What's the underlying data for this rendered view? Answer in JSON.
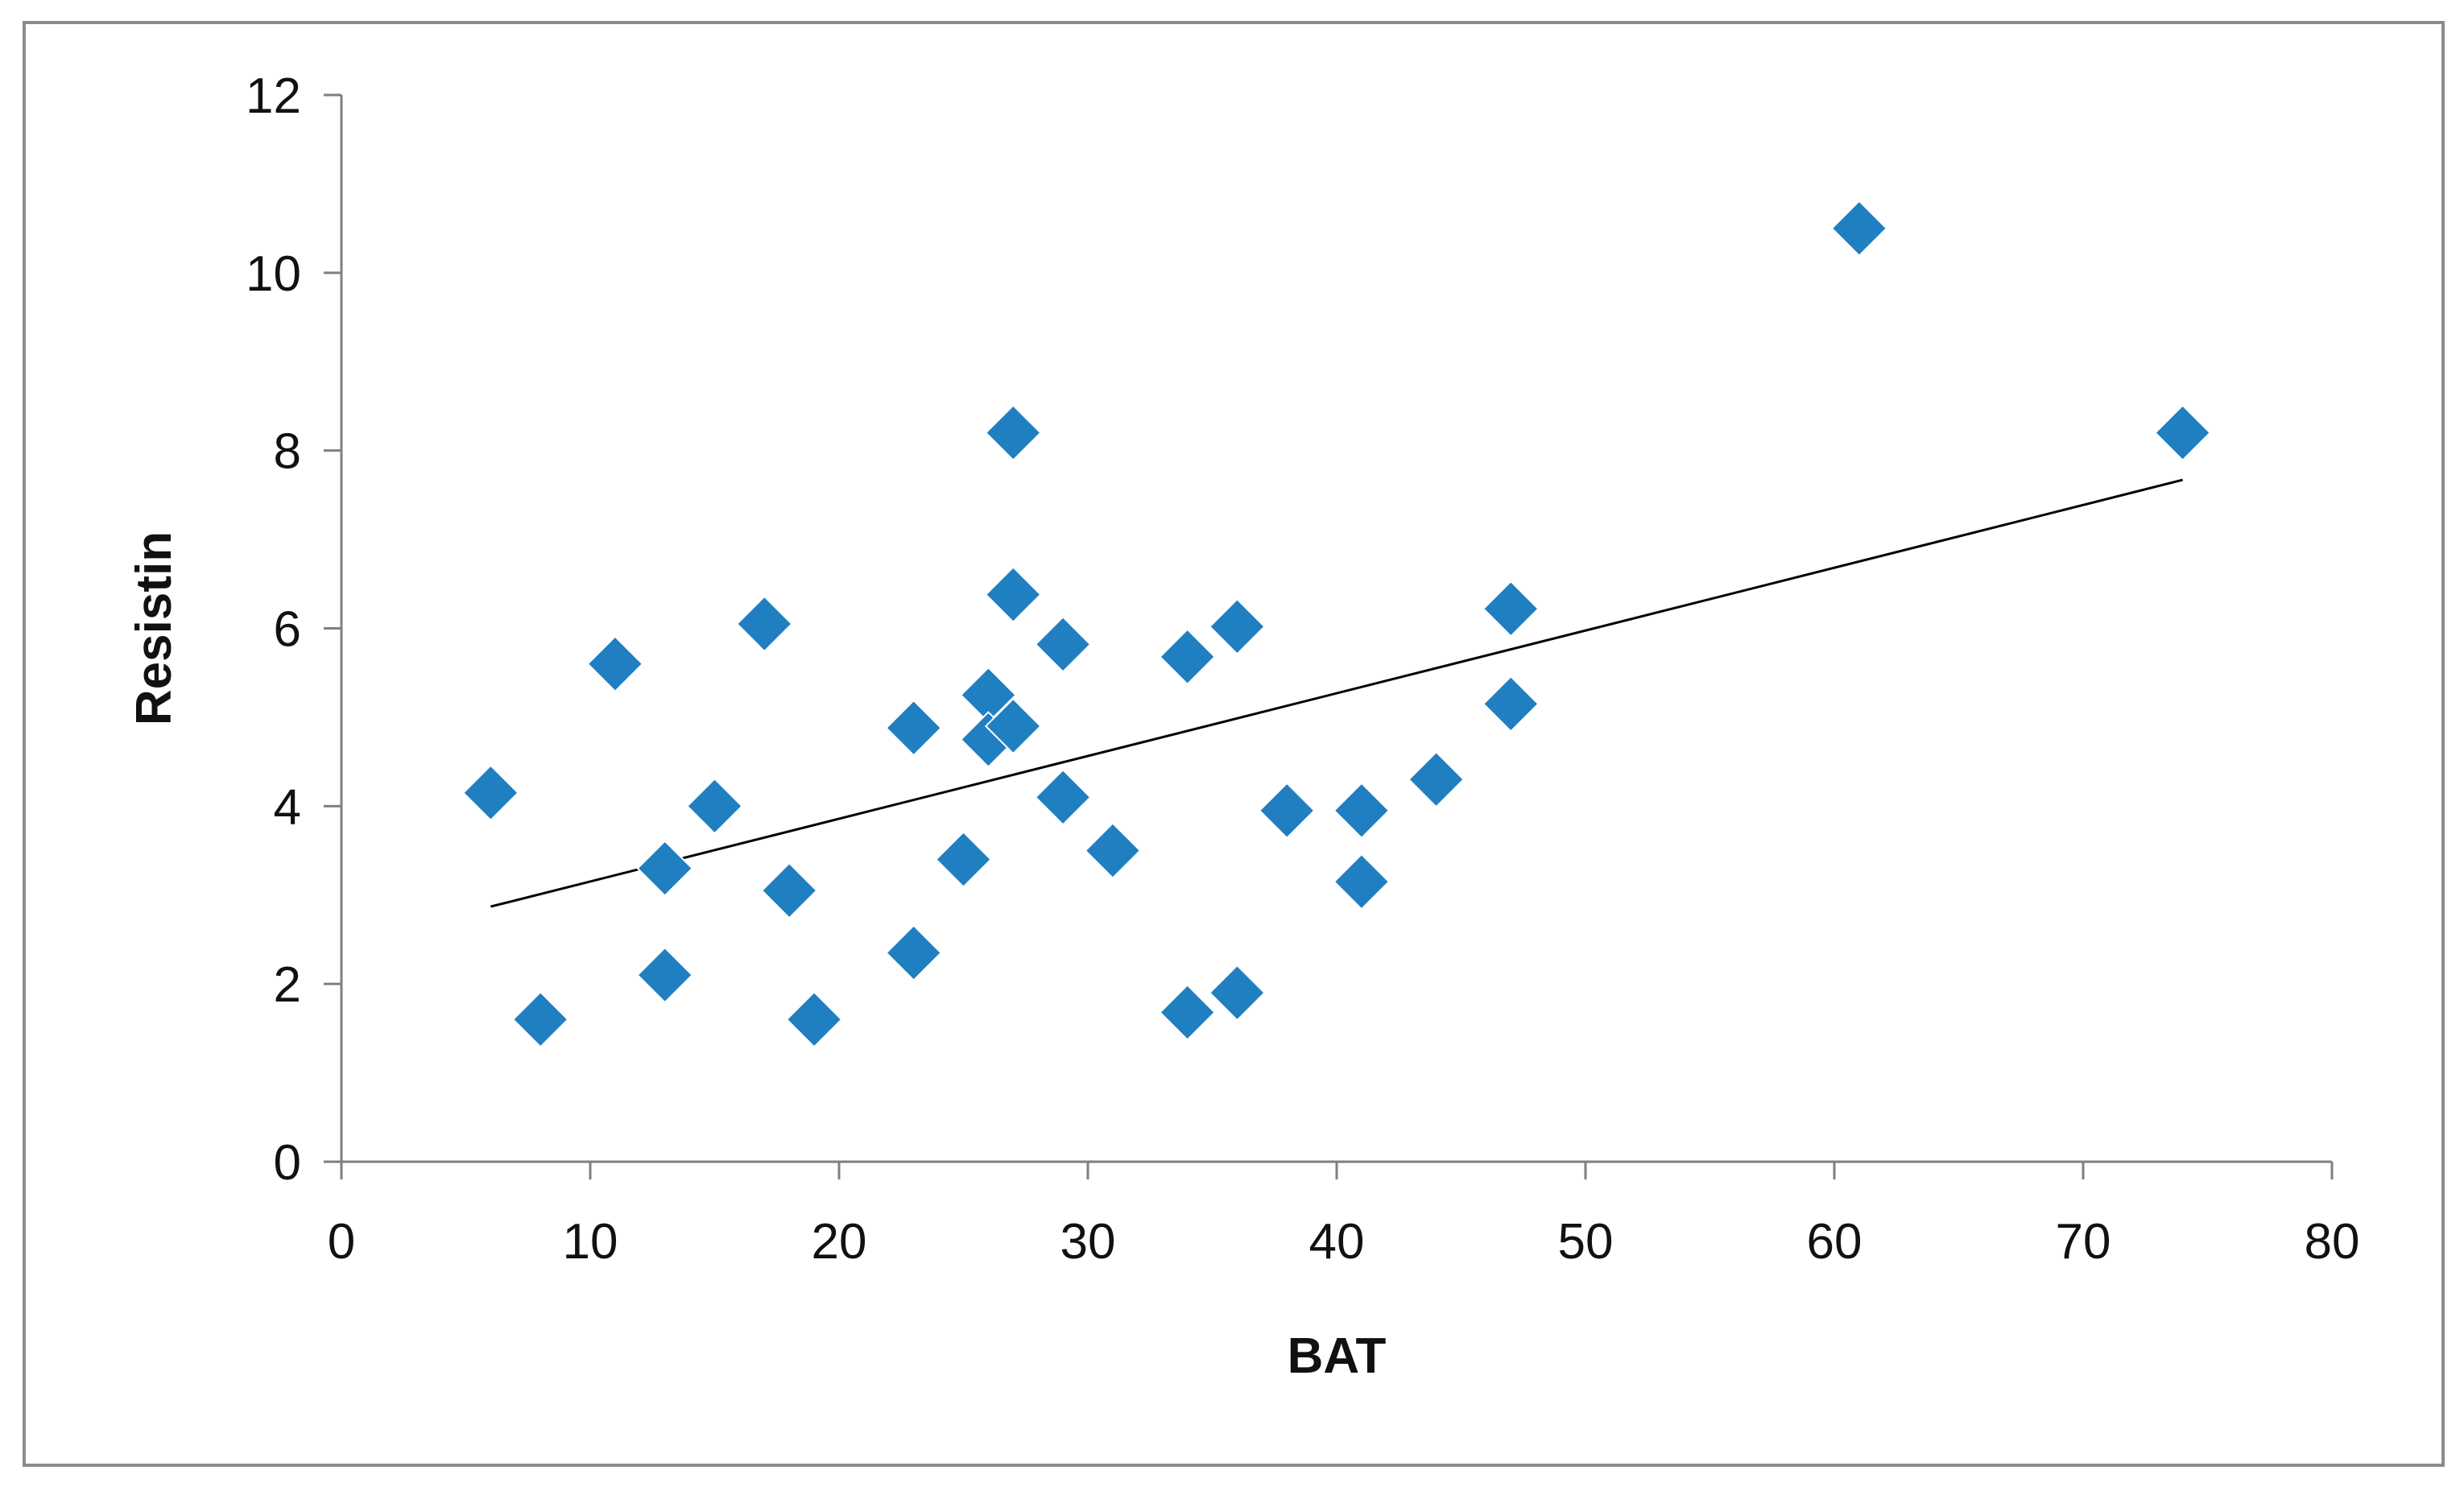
{
  "chart_data": {
    "type": "scatter",
    "xlabel": "BAT",
    "ylabel": "Resistin",
    "xlim": [
      0,
      80
    ],
    "ylim": [
      0,
      12
    ],
    "x_ticks": [
      0,
      10,
      20,
      30,
      40,
      50,
      60,
      70,
      80
    ],
    "y_ticks": [
      0,
      2,
      4,
      6,
      8,
      10,
      12
    ],
    "grid": false,
    "legend": "none",
    "marker": "diamond",
    "marker_color": "#1f7fc1",
    "series": [
      {
        "points": [
          [
            6,
            4.15
          ],
          [
            8,
            1.6
          ],
          [
            11,
            5.6
          ],
          [
            13,
            3.3
          ],
          [
            13,
            2.1
          ],
          [
            15,
            4.0
          ],
          [
            17,
            6.05
          ],
          [
            18,
            3.05
          ],
          [
            19,
            1.6
          ],
          [
            23,
            4.88
          ],
          [
            23,
            2.35
          ],
          [
            25,
            3.4
          ],
          [
            26,
            5.25
          ],
          [
            26,
            4.75
          ],
          [
            27,
            4.9
          ],
          [
            27,
            8.2
          ],
          [
            27,
            6.38
          ],
          [
            29,
            5.82
          ],
          [
            29,
            4.1
          ],
          [
            31,
            3.5
          ],
          [
            34,
            5.68
          ],
          [
            34,
            1.68
          ],
          [
            36,
            6.02
          ],
          [
            36,
            1.9
          ],
          [
            38,
            3.95
          ],
          [
            41,
            3.95
          ],
          [
            41,
            3.15
          ],
          [
            44,
            4.3
          ],
          [
            47,
            6.22
          ],
          [
            47,
            5.15
          ],
          [
            61,
            10.5
          ],
          [
            74,
            8.2
          ]
        ]
      }
    ],
    "trendline": {
      "type": "linear",
      "x_range": [
        6,
        74
      ],
      "y_at_start": 2.87,
      "y_at_end": 7.67,
      "color": "#000000"
    }
  }
}
